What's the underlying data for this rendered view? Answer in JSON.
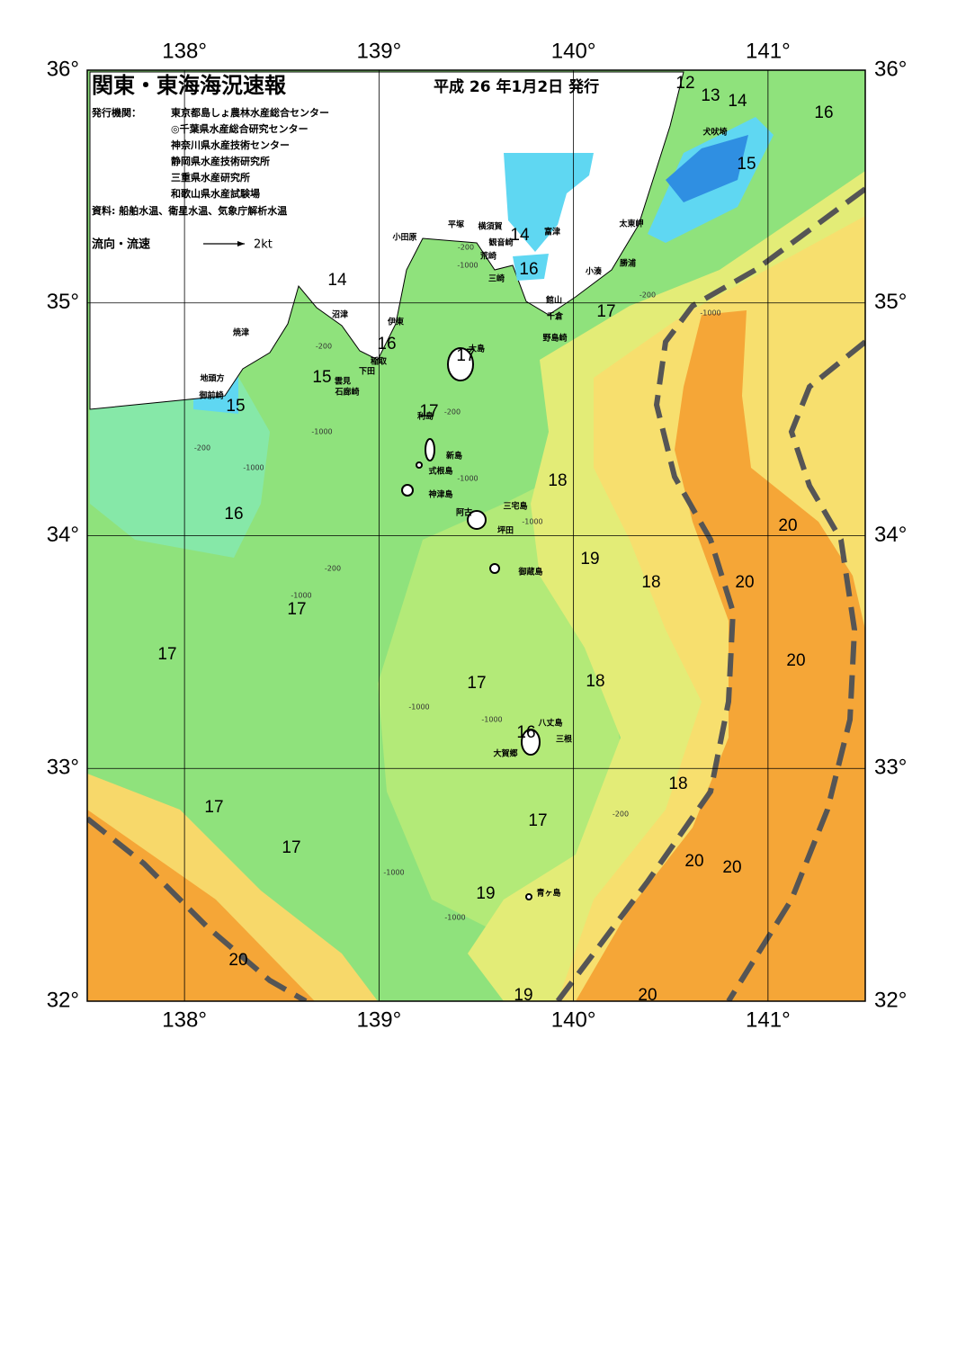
{
  "header": {
    "title": "関東・東海海況速報",
    "date": "平成 26 年1月2日 発行"
  },
  "issuers": {
    "label": "発行機関：",
    "agencies": [
      "東京都島しょ農林水産総合センター",
      "◎千葉県水産総合研究センター",
      "神奈川県水産技術センター",
      "静岡県水産技術研究所",
      "三重県水産研究所",
      "和歌山県水産試験場"
    ]
  },
  "sources": "資料: 船舶水温、衛星水温、気象庁解析水温",
  "legend": {
    "label": "流向・流速",
    "scale": "2kt"
  },
  "lon_ticks": [
    {
      "value": 138,
      "label": "138°"
    },
    {
      "value": 139,
      "label": "139°"
    },
    {
      "value": 140,
      "label": "140°"
    },
    {
      "value": 141,
      "label": "141°"
    }
  ],
  "lat_ticks": [
    {
      "value": 36,
      "label": "36°"
    },
    {
      "value": 35,
      "label": "35°"
    },
    {
      "value": 34,
      "label": "34°"
    },
    {
      "value": 33,
      "label": "33°"
    },
    {
      "value": 32,
      "label": "32°"
    }
  ],
  "places": [
    "犬吠埼",
    "太東岬",
    "勝浦",
    "小湊",
    "富津",
    "横須賀",
    "観音崎",
    "荒崎",
    "三崎",
    "平塚",
    "小田原",
    "館山",
    "千倉",
    "野島崎",
    "沼津",
    "伊東",
    "大島",
    "稲取",
    "下田",
    "雲見",
    "石廊崎",
    "焼津",
    "地頭方",
    "御前崎",
    "利島",
    "新島",
    "式根島",
    "神津島",
    "三宅島",
    "阿古",
    "坪田",
    "御蔵島",
    "八丈島",
    "三根",
    "大賀郷",
    "青ヶ島"
  ],
  "temperature_labels": [
    "12",
    "13",
    "14",
    "16",
    "15",
    "14",
    "16",
    "17",
    "14",
    "16",
    "15",
    "17",
    "15",
    "17",
    "18",
    "16",
    "19",
    "20",
    "18",
    "20",
    "17",
    "17",
    "20",
    "17",
    "18",
    "16",
    "18",
    "17",
    "17",
    "17",
    "20",
    "20",
    "19",
    "20",
    "19",
    "20"
  ],
  "depth_labels": [
    "-200",
    "-1000",
    "-200",
    "-1000",
    "-200",
    "-1000",
    "-200",
    "-1000",
    "-200",
    "-1000",
    "-200",
    "-1000",
    "-1000",
    "-1000",
    "-1000",
    "-200",
    "-1000",
    "-1000"
  ]
}
